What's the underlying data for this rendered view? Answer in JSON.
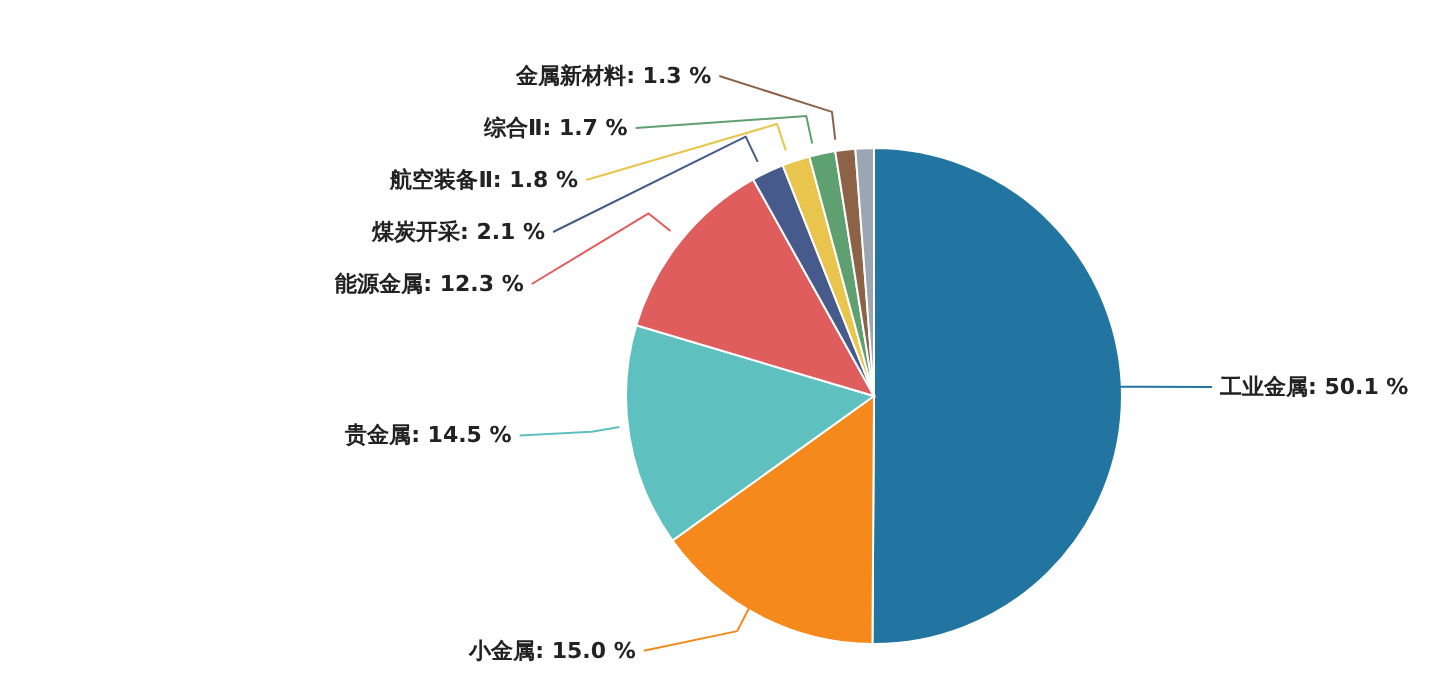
{
  "chart_data": {
    "type": "pie",
    "categories": [
      "工业金属",
      "小金属",
      "贵金属",
      "能源金属",
      "煤炭开采",
      "航空装备Ⅱ",
      "综合Ⅱ",
      "金属新材料",
      null
    ],
    "values": [
      50.1,
      15.0,
      14.5,
      12.3,
      2.1,
      1.8,
      1.7,
      1.3,
      1.2
    ],
    "value_labels": [
      "50.1 %",
      "15.0 %",
      "14.5 %",
      "12.3 %",
      "2.1 %",
      "1.8 %",
      "1.7 %",
      "1.3 %",
      null
    ],
    "colors": [
      "#2275a0",
      "#f5891c",
      "#5ec0bf",
      "#e05d5d",
      "#475a8c",
      "#e9c54d",
      "#5fa070",
      "#8d6347",
      "#9ba6b2"
    ],
    "legend": false
  }
}
